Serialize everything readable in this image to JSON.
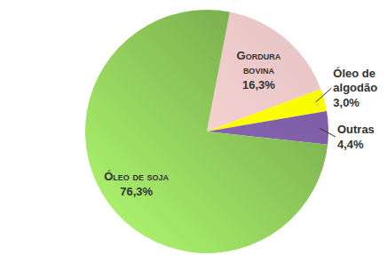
{
  "chart_data": {
    "type": "pie",
    "categories": [
      "Gordura bovina",
      "Óleo de algodão",
      "Outras",
      "Óleo de soja"
    ],
    "values": [
      16.3,
      3.0,
      4.4,
      76.3
    ],
    "value_labels": [
      "16,3%",
      "3,0%",
      "4,4%",
      "76,3%"
    ],
    "colors": [
      "#e8c6c6",
      "#ffff00",
      "#7f5fa8",
      "#78ab4c"
    ],
    "data_labels": true
  }
}
